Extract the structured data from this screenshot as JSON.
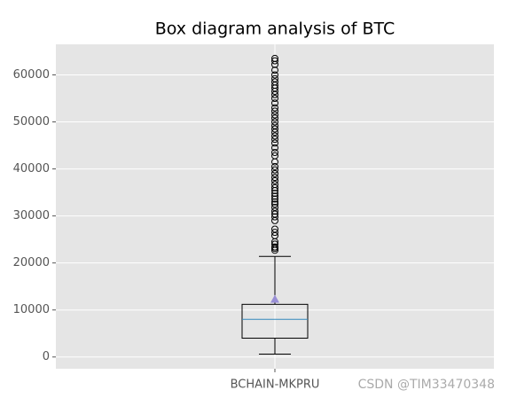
{
  "chart_data": {
    "type": "box",
    "title": "Box diagram analysis of BTC",
    "categories": [
      "BCHAIN-MKPRU"
    ],
    "series": [
      {
        "whislo": 600,
        "q1": 4000,
        "median": 8000,
        "q3": 11200,
        "whishi": 21400,
        "mean": 12300,
        "fliers": [
          22700,
          23100,
          23400,
          24000,
          24500,
          25800,
          26500,
          27200,
          29000,
          29800,
          30400,
          31000,
          31800,
          32500,
          33000,
          33600,
          34200,
          34800,
          35400,
          36000,
          36700,
          37500,
          38200,
          39000,
          39800,
          40500,
          41500,
          42800,
          43500,
          44500,
          45500,
          46300,
          47000,
          47800,
          48500,
          49200,
          50000,
          50800,
          51500,
          52300,
          53000,
          54000,
          55000,
          55800,
          56500,
          57200,
          57800,
          58500,
          59200,
          60000,
          61000,
          62200,
          63000,
          63500
        ],
        "color": "#000000",
        "median_color": "#348ABD",
        "mean_color": "#988ED5"
      }
    ],
    "ylim": [
      -2500,
      66500
    ],
    "yticks": [
      0,
      10000,
      20000,
      30000,
      40000,
      50000,
      60000
    ],
    "grid": true,
    "watermark": "CSDN @TIM33470348"
  }
}
